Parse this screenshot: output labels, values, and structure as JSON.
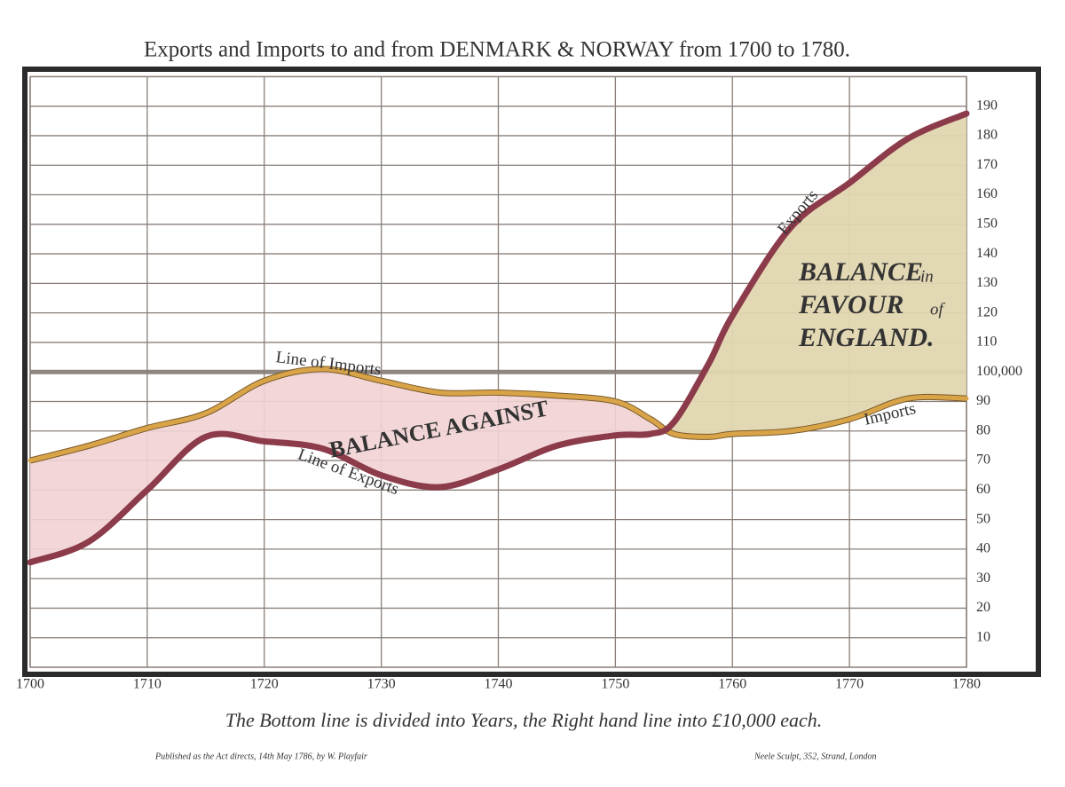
{
  "chart_data": {
    "type": "line",
    "title": "Exports and Imports to and from DENMARK & NORWAY from 1700 to 1780.",
    "caption": "The Bottom line is divided into Years, the Right hand line into £10,000 each.",
    "footer_left": "Published as the Act directs, 14th May 1786, by W. Playfair",
    "footer_right": "Neele Sculpt, 352, Strand, London",
    "x": [
      1700,
      1705,
      1710,
      1715,
      1720,
      1725,
      1730,
      1735,
      1740,
      1745,
      1750,
      1753,
      1755,
      1758,
      1760,
      1765,
      1770,
      1775,
      1780
    ],
    "series": [
      {
        "name": "Line of Imports",
        "color": "#d9a448",
        "values": [
          70,
          75,
          81,
          86,
          97,
          101,
          97,
          93,
          93,
          92,
          90,
          84,
          79,
          78,
          79,
          80,
          84,
          91,
          91
        ]
      },
      {
        "name": "Line of Exports",
        "color": "#8c3b4a",
        "values": [
          35.5,
          42.5,
          60,
          78,
          76.5,
          74,
          65,
          61,
          67,
          75,
          78.5,
          79,
          83,
          103,
          119,
          149,
          164,
          179,
          187.5
        ]
      }
    ],
    "fill_against": "#f2d3d4",
    "fill_favour": "#e2d6b0",
    "annotations": [
      "BALANCE AGAINST",
      "BALANCE",
      "in",
      "FAVOUR",
      "of",
      "ENGLAND.",
      "Exports",
      "Imports"
    ],
    "xlim": [
      1700,
      1780
    ],
    "xticks": [
      1700,
      1710,
      1720,
      1730,
      1740,
      1750,
      1760,
      1770,
      1780
    ],
    "ylim": [
      0,
      200
    ],
    "yticks": [
      10,
      20,
      30,
      40,
      50,
      60,
      70,
      80,
      90,
      {
        "value": 100,
        "label": "100,000"
      },
      110,
      120,
      130,
      140,
      150,
      160,
      170,
      180,
      190
    ],
    "grid": true
  }
}
